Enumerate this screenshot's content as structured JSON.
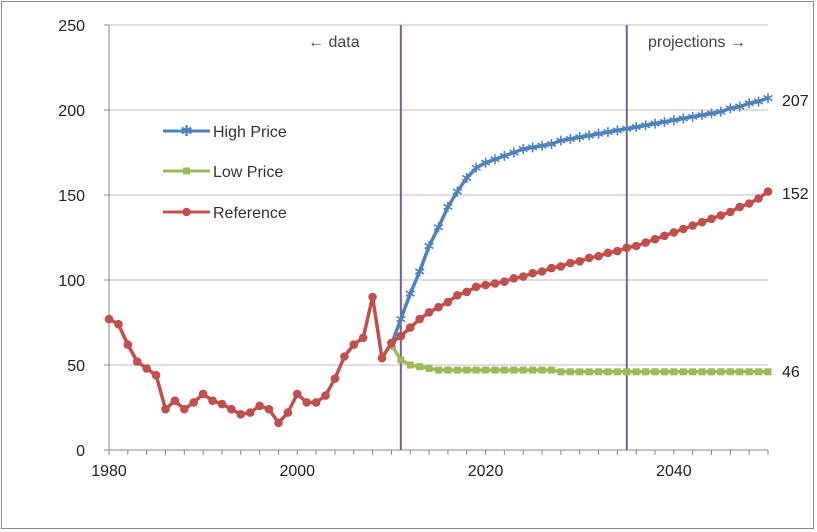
{
  "chart_data": {
    "type": "line",
    "title": "",
    "xlabel": "",
    "ylabel": "",
    "xlim": [
      1980,
      2050
    ],
    "ylim": [
      0,
      250
    ],
    "x_ticks": [
      1980,
      2000,
      2020,
      2040
    ],
    "y_ticks": [
      0,
      50,
      100,
      150,
      200,
      250
    ],
    "grid": "horizontal",
    "legend_position": "left",
    "annotations": {
      "data_label": "← data",
      "projections_label": "projections →",
      "divider_years": [
        2011,
        2035
      ]
    },
    "end_labels": {
      "high": "207",
      "reference": "152",
      "low": "46"
    },
    "series": [
      {
        "name": "High Price",
        "color": "#4f81bd",
        "marker": "star",
        "x": [
          2010,
          2011,
          2012,
          2013,
          2014,
          2015,
          2016,
          2017,
          2018,
          2019,
          2020,
          2021,
          2022,
          2023,
          2024,
          2025,
          2026,
          2027,
          2028,
          2029,
          2030,
          2031,
          2032,
          2033,
          2034,
          2035,
          2036,
          2037,
          2038,
          2039,
          2040,
          2041,
          2042,
          2043,
          2044,
          2045,
          2046,
          2047,
          2048,
          2049,
          2050
        ],
        "values": [
          62,
          77,
          92,
          105,
          120,
          131,
          143,
          152,
          160,
          166,
          169,
          171,
          173,
          175,
          177,
          178,
          179,
          180,
          182,
          183,
          184,
          185,
          186,
          187,
          188,
          189,
          190,
          191,
          192,
          193,
          194,
          195,
          196,
          197,
          198,
          199,
          201,
          202,
          204,
          205,
          207
        ]
      },
      {
        "name": "Low Price",
        "color": "#9bbb59",
        "marker": "square",
        "x": [
          2010,
          2011,
          2012,
          2013,
          2014,
          2015,
          2016,
          2017,
          2018,
          2019,
          2020,
          2021,
          2022,
          2023,
          2024,
          2025,
          2026,
          2027,
          2028,
          2029,
          2030,
          2031,
          2032,
          2033,
          2034,
          2035,
          2036,
          2037,
          2038,
          2039,
          2040,
          2041,
          2042,
          2043,
          2044,
          2045,
          2046,
          2047,
          2048,
          2049,
          2050
        ],
        "values": [
          62,
          53,
          50,
          49,
          48,
          47,
          47,
          47,
          47,
          47,
          47,
          47,
          47,
          47,
          47,
          47,
          47,
          47,
          46,
          46,
          46,
          46,
          46,
          46,
          46,
          46,
          46,
          46,
          46,
          46,
          46,
          46,
          46,
          46,
          46,
          46,
          46,
          46,
          46,
          46,
          46
        ]
      },
      {
        "name": "Reference",
        "color": "#c0504d",
        "marker": "circle",
        "x": [
          1980,
          1981,
          1982,
          1983,
          1984,
          1985,
          1986,
          1987,
          1988,
          1989,
          1990,
          1991,
          1992,
          1993,
          1994,
          1995,
          1996,
          1997,
          1998,
          1999,
          2000,
          2001,
          2002,
          2003,
          2004,
          2005,
          2006,
          2007,
          2008,
          2009,
          2010,
          2011,
          2012,
          2013,
          2014,
          2015,
          2016,
          2017,
          2018,
          2019,
          2020,
          2021,
          2022,
          2023,
          2024,
          2025,
          2026,
          2027,
          2028,
          2029,
          2030,
          2031,
          2032,
          2033,
          2034,
          2035,
          2036,
          2037,
          2038,
          2039,
          2040,
          2041,
          2042,
          2043,
          2044,
          2045,
          2046,
          2047,
          2048,
          2049,
          2050
        ],
        "values": [
          77,
          74,
          62,
          52,
          48,
          44,
          24,
          29,
          24,
          28,
          33,
          29,
          27,
          24,
          21,
          22,
          26,
          24,
          16,
          22,
          33,
          28,
          28,
          32,
          42,
          55,
          62,
          66,
          90,
          54,
          63,
          67,
          72,
          77,
          81,
          84,
          87,
          91,
          93,
          96,
          97,
          98,
          99,
          101,
          102,
          104,
          105,
          107,
          108,
          110,
          111,
          113,
          114,
          116,
          117,
          119,
          120,
          122,
          124,
          126,
          128,
          130,
          132,
          134,
          136,
          138,
          140,
          143,
          145,
          148,
          152
        ]
      }
    ]
  }
}
